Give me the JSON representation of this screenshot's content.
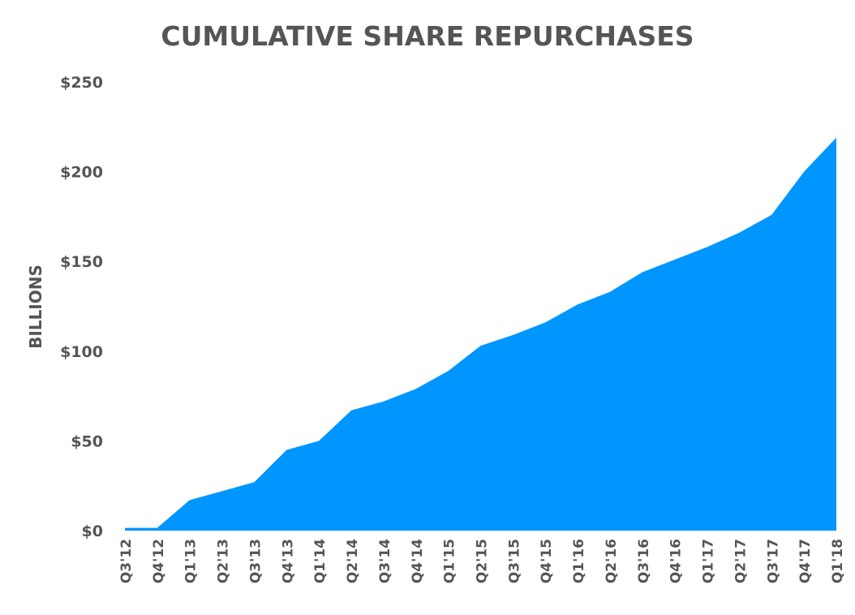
{
  "chart_data": {
    "type": "area",
    "title": "CUMULATIVE SHARE REPURCHASES",
    "xlabel": "",
    "ylabel": "BILLIONS",
    "ylim": [
      0,
      250
    ],
    "yticks": [
      "$0",
      "$50",
      "$100",
      "$150",
      "$200",
      "$250"
    ],
    "ytick_values": [
      0,
      50,
      100,
      150,
      200,
      250
    ],
    "grid": false,
    "legend": "none",
    "fill_color": "#0096FF",
    "text_color": "#555555",
    "categories": [
      "Q3'12",
      "Q4'12",
      "Q1'13",
      "Q2'13",
      "Q3'13",
      "Q4'13",
      "Q1'14",
      "Q2'14",
      "Q3'14",
      "Q4'14",
      "Q1'15",
      "Q2'15",
      "Q3'15",
      "Q4'15",
      "Q1'16",
      "Q2'16",
      "Q3'16",
      "Q4'16",
      "Q1'17",
      "Q2'17",
      "Q3'17",
      "Q4'17",
      "Q1'18"
    ],
    "values": [
      1.5,
      1.5,
      17,
      22,
      27,
      45,
      50,
      67,
      72,
      79,
      89,
      103,
      109,
      116,
      126,
      133,
      144,
      151,
      158,
      166,
      176,
      200,
      219
    ]
  }
}
